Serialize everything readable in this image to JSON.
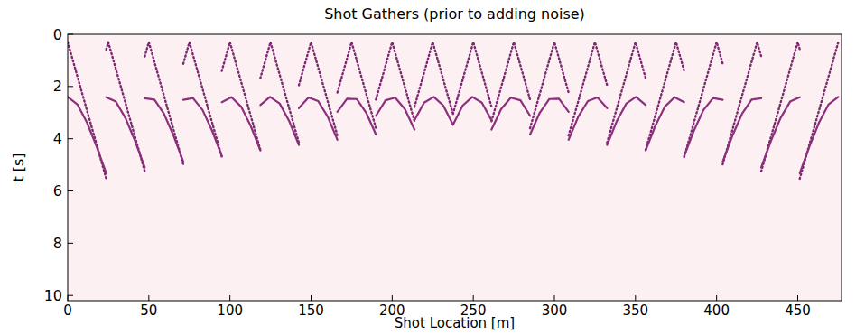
{
  "chart_data": {
    "type": "line",
    "title": "Shot Gathers (prior to adding noise)",
    "x_label": "Shot Location [m]",
    "y_label": "t [s]",
    "xlim": [
      0,
      477
    ],
    "ylim": [
      10.2,
      0
    ],
    "xticks": [
      0,
      50,
      100,
      150,
      200,
      250,
      300,
      350,
      400,
      450
    ],
    "yticks": [
      0,
      2,
      4,
      6,
      8,
      10
    ],
    "grid": false,
    "series": [
      {
        "color": "#7a2a6e",
        "line_style": "dotted",
        "marker": "none",
        "x": [
          0,
          23.75,
          23.75,
          23.75,
          25,
          47.5,
          47.5,
          47.5,
          50,
          71.25,
          71.25,
          71.25,
          75,
          95,
          95,
          95,
          100,
          118.75,
          118.75,
          118.75,
          125,
          142.5,
          142.5,
          142.5,
          150,
          166.25,
          166.25,
          166.25,
          175,
          190,
          190,
          190,
          200,
          213.75,
          213.75,
          213.75,
          225,
          237.5,
          237.5,
          237.5,
          250,
          261.25,
          261.25,
          261.25,
          275,
          285,
          285,
          285,
          300,
          308.75,
          308.75,
          308.75,
          325,
          332.5,
          332.5,
          332.5,
          350,
          356.25,
          356.25,
          356.25,
          375,
          380,
          380,
          380,
          400,
          403.75,
          403.75,
          403.75,
          425,
          427.5,
          427.5,
          427.5,
          450,
          451.25,
          451.25,
          451.25,
          475
        ],
        "values": [
          0.3,
          5.53,
          null,
          0.58,
          0.3,
          5.25,
          null,
          0.85,
          0.3,
          4.98,
          null,
          1.13,
          0.3,
          4.7,
          null,
          1.4,
          0.3,
          4.43,
          null,
          1.68,
          0.3,
          4.15,
          null,
          1.95,
          0.3,
          3.88,
          null,
          2.23,
          0.3,
          3.6,
          null,
          2.5,
          0.3,
          3.33,
          null,
          2.78,
          0.3,
          3.05,
          null,
          3.05,
          0.3,
          2.78,
          null,
          3.33,
          0.3,
          2.5,
          null,
          3.6,
          0.3,
          2.23,
          null,
          3.88,
          0.3,
          1.95,
          null,
          4.15,
          0.3,
          1.68,
          null,
          4.43,
          0.3,
          1.4,
          null,
          4.7,
          0.3,
          1.13,
          null,
          4.98,
          0.3,
          0.85,
          null,
          5.25,
          0.3,
          0.58,
          null,
          5.53,
          0.3
        ]
      },
      {
        "color": "#8c2f7c",
        "line_style": "solid",
        "marker": "none",
        "x": [
          0,
          5.94,
          11.88,
          17.81,
          23.75,
          23.75,
          23.75,
          29.69,
          35.63,
          41.56,
          47.5,
          47.5,
          47.5,
          53.44,
          59.38,
          65.31,
          71.25,
          71.25,
          71.25,
          77.19,
          83.13,
          89.06,
          95,
          95,
          95,
          100.94,
          106.88,
          112.81,
          118.75,
          118.75,
          118.75,
          124.69,
          130.63,
          136.56,
          142.5,
          142.5,
          142.5,
          148.44,
          154.38,
          160.31,
          166.25,
          166.25,
          166.25,
          172.19,
          178.13,
          184.06,
          190,
          190,
          190,
          195.94,
          201.88,
          207.81,
          213.75,
          213.75,
          213.75,
          219.69,
          225.63,
          231.56,
          237.5,
          237.5,
          237.5,
          243.44,
          249.38,
          255.31,
          261.25,
          261.25,
          261.25,
          267.19,
          273.13,
          279.06,
          285,
          285,
          285,
          290.94,
          296.88,
          302.81,
          308.75,
          308.75,
          308.75,
          314.69,
          320.63,
          326.56,
          332.5,
          332.5,
          332.5,
          338.44,
          344.38,
          350.31,
          356.25,
          356.25,
          356.25,
          362.19,
          368.13,
          374.06,
          380,
          380,
          380,
          385.94,
          391.88,
          397.81,
          403.75,
          403.75,
          403.75,
          409.69,
          415.63,
          421.56,
          427.5,
          427.5,
          427.5,
          433.44,
          439.38,
          445.31,
          451.25,
          451.25,
          451.25,
          457.19,
          463.13,
          469.06,
          475
        ],
        "values": [
          2.4,
          2.68,
          3.38,
          4.3,
          5.32,
          null,
          2.41,
          2.58,
          3.21,
          4.09,
          5.1,
          null,
          2.45,
          2.5,
          3.05,
          3.89,
          4.88,
          null,
          2.51,
          2.44,
          2.9,
          3.7,
          4.66,
          null,
          2.6,
          2.41,
          2.77,
          3.51,
          4.45,
          null,
          2.71,
          2.4,
          2.65,
          3.33,
          4.24,
          null,
          2.83,
          2.42,
          2.56,
          3.16,
          4.04,
          null,
          2.97,
          2.47,
          2.48,
          3.01,
          3.84,
          null,
          3.12,
          2.53,
          2.43,
          2.86,
          3.65,
          null,
          3.29,
          2.62,
          2.4,
          2.73,
          3.47,
          null,
          3.47,
          2.73,
          2.4,
          2.62,
          3.29,
          null,
          3.65,
          2.86,
          2.43,
          2.53,
          3.12,
          null,
          3.84,
          3.01,
          2.48,
          2.47,
          2.97,
          null,
          4.04,
          3.16,
          2.56,
          2.42,
          2.83,
          null,
          4.24,
          3.33,
          2.65,
          2.4,
          2.71,
          null,
          4.45,
          3.51,
          2.77,
          2.41,
          2.6,
          null,
          4.66,
          3.7,
          2.9,
          2.44,
          2.51,
          null,
          4.88,
          3.89,
          3.05,
          2.5,
          2.45,
          null,
          5.1,
          4.09,
          3.21,
          2.58,
          2.41,
          null,
          5.32,
          4.3,
          3.38,
          2.68,
          2.4
        ]
      }
    ]
  }
}
